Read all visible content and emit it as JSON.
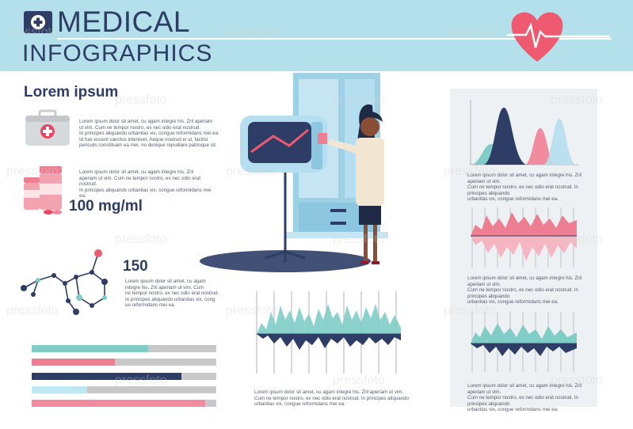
{
  "header": {
    "title_line1": "MEDICAL",
    "title_line2": "INFOGRAPHICS"
  },
  "section": {
    "heading": "Lorem ipsum"
  },
  "texts": {
    "kit": [
      "Lorem ipsum dolor sit amet, cu agam integre his. Zril aperiam",
      "ut vim. Cum ne tempor nostro, ex nec odio erat nostrud.",
      "In principes aliquando urbanitas vix, congue reformidans mei ea.",
      "Id has essent sanctus intereset. Aeque nostrud ei ut, facilisi",
      "periculis constituam ea mei, no denique repudiare patrioque sit."
    ],
    "dose": [
      "Lorem ipsum dolor sit amet, cu agam integre his. Zril",
      "aperiam ut vim. Cum ne tempor nostro, ex nec odio erat nostrud.",
      "In principes aliquando urbanitas vix, congue reformidans mei ea."
    ],
    "molecule": [
      "Lorem ipsum dolor sit amet, cu agam",
      "integre his. Zril aperiam ut vim. Cum",
      "ne tempor nostro, ex nec odio erat nostrud.",
      "In principes aliquando urbanitas vix, cong",
      "ue reformidans mei ea."
    ],
    "center_chart": [
      "Lorem ipsum dolor sit amet, cu agam integre his. Zril aperiam ut vim.",
      "Cum ne tempor nostro, ex nec odio erat nostrud. In principes aliquando",
      "urbanitas vix, congue reformidans mei ea."
    ],
    "panel_1": [
      "Lorem ipsum dolor sit amet, cu agam integre his. Zril aperiam ut vim.",
      "Cum ne tempor nostro, ex nec odio erat nostrud. In principes aliquando",
      "urbanitas vix, congue reformidans mei ea."
    ],
    "panel_2": [
      "Lorem ipsum dolor sit amet, cu agam integre his. Zril aperiam ut vim.",
      "Cum ne tempor nostro, ex nec odio erat nostrud. In principes aliquando",
      "urbanitas vix, congue reformidans mei ea."
    ],
    "panel_3": [
      "Lorem ipsum dolor sit amet, cu agam integre his. Zril aperiam ut vim.",
      "Cum ne tempor nostro, ex nec odio erat nostrud. In principes aliquando",
      "urbanitas vix, congue reformidans mei ea."
    ]
  },
  "stats": {
    "dose_value": "100 mg/ml",
    "molecule_value": "150"
  },
  "progress_bars": [
    {
      "fraction": 0.63,
      "color": "#7fcdc6"
    },
    {
      "fraction": 0.45,
      "color": "#ee7f93"
    },
    {
      "fraction": 0.81,
      "color": "#2e3d66"
    },
    {
      "fraction": 0.3,
      "color": "#bfe8f3"
    },
    {
      "fraction": 0.94,
      "color": "#f08ba0"
    }
  ],
  "watermark": "pressfoto",
  "colors": {
    "navy": "#2e3d66",
    "teal": "#7fcdc6",
    "pink": "#ee7f93",
    "light_blue": "#b3e0ea",
    "heart": "#ee5a70"
  }
}
